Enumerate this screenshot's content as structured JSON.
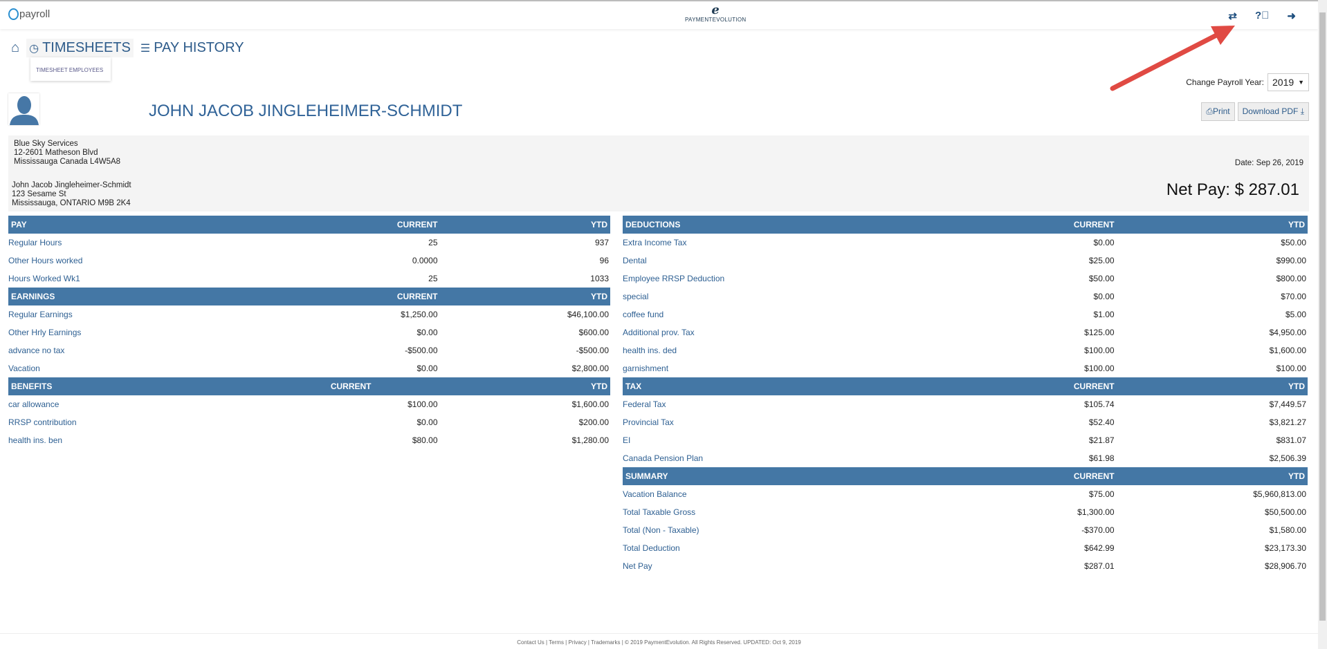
{
  "app": {
    "logo_text": "payroll",
    "brand": "PAYMENTEVOLUTION"
  },
  "nav": {
    "timesheets": "TIMESHEETS",
    "pay_history": "PAY HISTORY",
    "dropdown_item": "TIMESHEET EMPLOYEES"
  },
  "employee": {
    "name": "JOHN JACOB JINGLEHEIMER-SCHMIDT"
  },
  "controls": {
    "year_label": "Change Payroll Year:",
    "year": "2019",
    "print": "Print",
    "download": "Download PDF"
  },
  "company": {
    "name": "Blue Sky Services",
    "street": "12-2601 Matheson Blvd",
    "city": "Mississauga Canada L4W5A8"
  },
  "employee_addr": {
    "name": "John Jacob Jingleheimer-Schmidt",
    "street": "123 Sesame St",
    "city": "Mississauga, ONTARIO M9B 2K4"
  },
  "stub": {
    "date": "Date: Sep 26, 2019",
    "net_pay": "Net Pay: $ 287.01"
  },
  "left_sections": [
    {
      "title": "PAY",
      "current": "CURRENT",
      "ytd": "YTD",
      "rows": [
        [
          "Regular Hours",
          "25",
          "937"
        ],
        [
          "Other Hours worked",
          "0.0000",
          "96"
        ],
        [
          "Hours Worked Wk1",
          "25",
          "1033"
        ]
      ]
    },
    {
      "title": "EARNINGS",
      "current": "CURRENT",
      "ytd": "YTD",
      "rows": [
        [
          "Regular Earnings",
          "$1,250.00",
          "$46,100.00"
        ],
        [
          "Other Hrly Earnings",
          "$0.00",
          "$600.00"
        ],
        [
          "advance no tax",
          "-$500.00",
          "-$500.00"
        ],
        [
          "Vacation",
          "$0.00",
          "$2,800.00"
        ]
      ]
    },
    {
      "title": "BENEFITS",
      "current": "CURRENT",
      "ytd": "YTD",
      "rows": [
        [
          "car allowance",
          "$100.00",
          "$1,600.00"
        ],
        [
          "RRSP contribution",
          "$0.00",
          "$200.00"
        ],
        [
          "health ins. ben",
          "$80.00",
          "$1,280.00"
        ]
      ]
    }
  ],
  "right_sections": [
    {
      "title": "DEDUCTIONS",
      "current": "CURRENT",
      "ytd": "YTD",
      "rows": [
        [
          "Extra Income Tax",
          "$0.00",
          "$50.00"
        ],
        [
          "Dental",
          "$25.00",
          "$990.00"
        ],
        [
          "Employee RRSP Deduction",
          "$50.00",
          "$800.00"
        ],
        [
          "special",
          "$0.00",
          "$70.00"
        ],
        [
          "coffee fund",
          "$1.00",
          "$5.00"
        ],
        [
          "Additional prov. Tax",
          "$125.00",
          "$4,950.00"
        ],
        [
          "health ins. ded",
          "$100.00",
          "$1,600.00"
        ],
        [
          "garnishment",
          "$100.00",
          "$100.00"
        ]
      ]
    },
    {
      "title": "TAX",
      "current": "CURRENT",
      "ytd": "YTD",
      "rows": [
        [
          "Federal Tax",
          "$105.74",
          "$7,449.57"
        ],
        [
          "Provincial Tax",
          "$52.40",
          "$3,821.27"
        ],
        [
          "EI",
          "$21.87",
          "$831.07"
        ],
        [
          "Canada Pension Plan",
          "$61.98",
          "$2,506.39"
        ]
      ]
    },
    {
      "title": "SUMMARY",
      "current": "CURRENT",
      "ytd": "YTD",
      "rows": [
        [
          "Vacation Balance",
          "$75.00",
          "$5,960,813.00"
        ],
        [
          "Total Taxable Gross",
          "$1,300.00",
          "$50,500.00"
        ],
        [
          "Total (Non - Taxable)",
          "-$370.00",
          "$1,580.00"
        ],
        [
          "Total Deduction",
          "$642.99",
          "$23,173.30"
        ],
        [
          "Net Pay",
          "$287.01",
          "$28,906.70"
        ]
      ]
    }
  ],
  "footer": {
    "text": "Contact Us | Terms | Privacy | Trademarks | © 2019 PaymentEvolution. All Rights Reserved. UPDATED: Oct 9, 2019"
  },
  "colors": {
    "header": "#4477a5",
    "label": "#2d5f92",
    "annotation_arrow": "#e04a43"
  }
}
